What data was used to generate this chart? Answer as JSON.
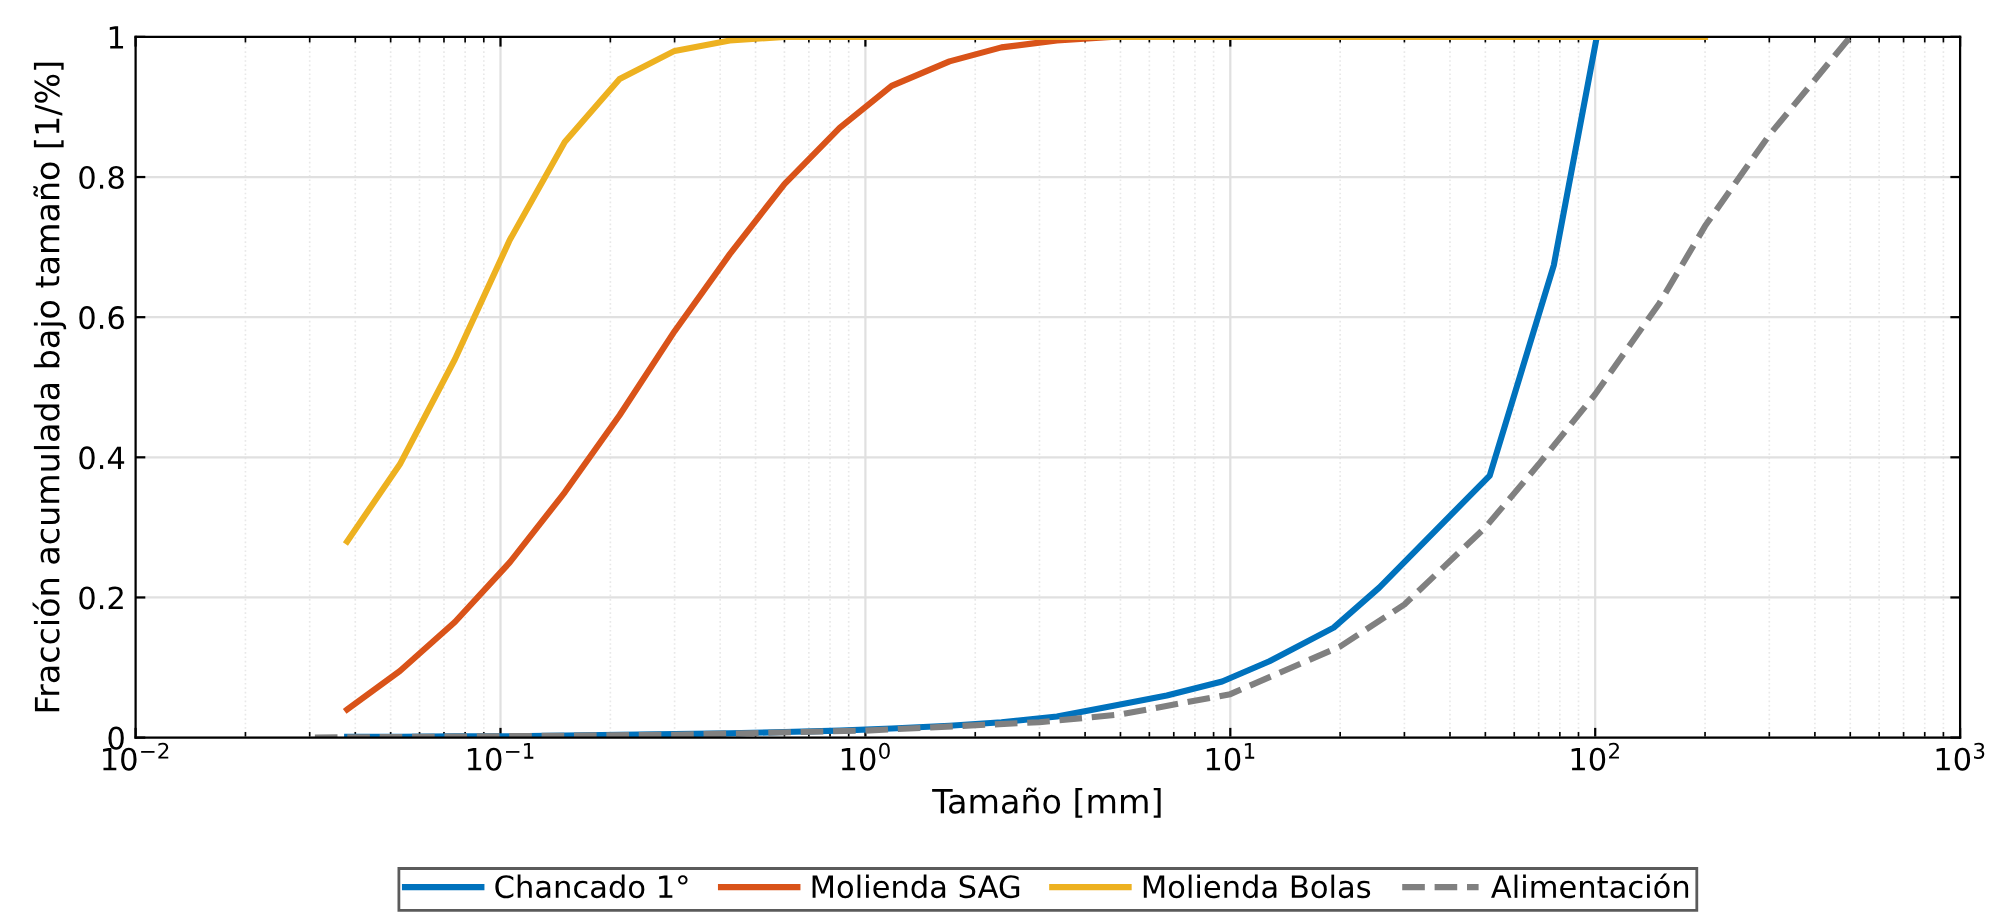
{
  "chart_data": {
    "type": "line",
    "xlabel": "Tamaño [mm]",
    "ylabel": "Fracción acumulada bajo tamaño [1/%]",
    "log": "x",
    "xlim": [
      0.01,
      1000
    ],
    "ylim": [
      0,
      1
    ],
    "xticks": [
      {
        "value": 0.01,
        "label": "10$^{−2}$"
      },
      {
        "value": 0.1,
        "label": "10$^{−1}$"
      },
      {
        "value": 1,
        "label": "10$^{0}$"
      },
      {
        "value": 10,
        "label": "10$^{1}$"
      },
      {
        "value": 100,
        "label": "10$^{2}$"
      },
      {
        "value": 1000,
        "label": "10$^{3}$"
      }
    ],
    "yticks": [
      0,
      0.2,
      0.4,
      0.6,
      0.8,
      1
    ],
    "grid": true,
    "legend": "bottom",
    "line_style": "solid",
    "marker": "none",
    "series": [
      {
        "name": "Chancado 1°",
        "color": "#0072bd",
        "x": [
          0.038,
          0.053,
          0.075,
          0.106,
          0.15,
          0.212,
          0.3,
          0.425,
          0.6,
          0.85,
          1.18,
          1.7,
          2.36,
          3.35,
          4.75,
          6.7,
          9.5,
          12.8,
          19.2,
          25.6,
          51.4,
          77,
          101
        ],
        "values": [
          0.001,
          0.001,
          0.002,
          0.002,
          0.003,
          0.004,
          0.005,
          0.006,
          0.008,
          0.01,
          0.013,
          0.017,
          0.022,
          0.03,
          0.045,
          0.06,
          0.08,
          0.109,
          0.157,
          0.214,
          0.374,
          0.674,
          1
        ]
      },
      {
        "name": "Molienda SAG",
        "color": "#d95319",
        "x": [
          0.038,
          0.053,
          0.075,
          0.106,
          0.15,
          0.212,
          0.3,
          0.425,
          0.6,
          0.85,
          1.18,
          1.7,
          2.36,
          3.35,
          4.75
        ],
        "values": [
          0.04,
          0.095,
          0.165,
          0.25,
          0.35,
          0.46,
          0.58,
          0.69,
          0.79,
          0.87,
          0.93,
          0.965,
          0.985,
          0.995,
          1
        ]
      },
      {
        "name": "Molienda Bolas",
        "color": "#edb120",
        "x": [
          0.038,
          0.053,
          0.075,
          0.106,
          0.15,
          0.212,
          0.3,
          0.425,
          0.6,
          0.85,
          1.18,
          1.7,
          2.36,
          3.35,
          4.75,
          6.7,
          9.5,
          13.2,
          19,
          25,
          50,
          75,
          100,
          150,
          200
        ],
        "values": [
          0.28,
          0.39,
          0.54,
          0.71,
          0.85,
          0.94,
          0.98,
          0.995,
          1,
          1,
          1,
          1,
          1,
          1,
          1,
          1,
          1,
          1,
          1,
          1,
          1,
          1,
          1,
          1,
          1
        ]
      },
      {
        "name": "Alimentación",
        "color": "#808080",
        "line_style": "dashed",
        "x": [
          0.031,
          0.1,
          0.3,
          1,
          3,
          5,
          10,
          20,
          30,
          50,
          70,
          100,
          150,
          200,
          300,
          500
        ],
        "values": [
          0,
          0.002,
          0.004,
          0.01,
          0.022,
          0.033,
          0.062,
          0.13,
          0.19,
          0.3,
          0.39,
          0.49,
          0.62,
          0.73,
          0.86,
          1
        ]
      }
    ]
  }
}
